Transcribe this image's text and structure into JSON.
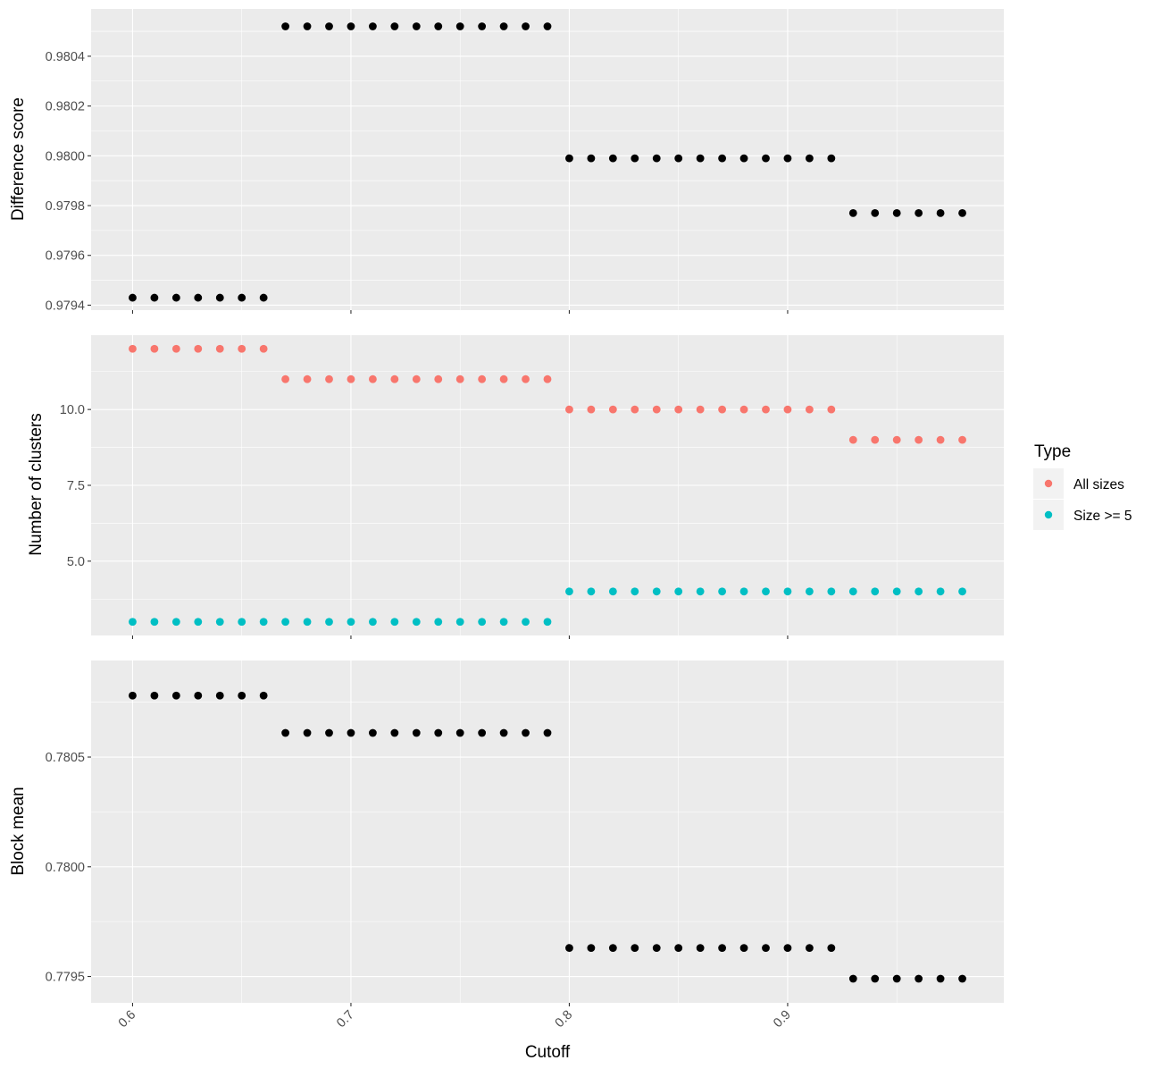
{
  "chart_data": [
    {
      "type": "scatter",
      "panel": "top",
      "ylabel": "Difference score",
      "xlim": [
        0.581,
        0.999
      ],
      "ylim": [
        0.97938,
        0.98059
      ],
      "yticks": [
        0.9794,
        0.9796,
        0.9798,
        0.98,
        0.9802,
        0.9804
      ],
      "ytick_labels": [
        "0.9794",
        "0.9796",
        "0.9798",
        "0.9800",
        "0.9802",
        "0.9804"
      ],
      "x_tick_marks": [
        0.6,
        0.7,
        0.8,
        0.9
      ],
      "series": [
        {
          "color": "#000000",
          "points": [
            [
              0.6,
              0.97943
            ],
            [
              0.61,
              0.97943
            ],
            [
              0.62,
              0.97943
            ],
            [
              0.63,
              0.97943
            ],
            [
              0.64,
              0.97943
            ],
            [
              0.65,
              0.97943
            ],
            [
              0.66,
              0.97943
            ],
            [
              0.67,
              0.98052
            ],
            [
              0.68,
              0.98052
            ],
            [
              0.69,
              0.98052
            ],
            [
              0.7,
              0.98052
            ],
            [
              0.71,
              0.98052
            ],
            [
              0.72,
              0.98052
            ],
            [
              0.73,
              0.98052
            ],
            [
              0.74,
              0.98052
            ],
            [
              0.75,
              0.98052
            ],
            [
              0.76,
              0.98052
            ],
            [
              0.77,
              0.98052
            ],
            [
              0.78,
              0.98052
            ],
            [
              0.79,
              0.98052
            ],
            [
              0.8,
              0.97999
            ],
            [
              0.81,
              0.97999
            ],
            [
              0.82,
              0.97999
            ],
            [
              0.83,
              0.97999
            ],
            [
              0.84,
              0.97999
            ],
            [
              0.85,
              0.97999
            ],
            [
              0.86,
              0.97999
            ],
            [
              0.87,
              0.97999
            ],
            [
              0.88,
              0.97999
            ],
            [
              0.89,
              0.97999
            ],
            [
              0.9,
              0.97999
            ],
            [
              0.91,
              0.97999
            ],
            [
              0.92,
              0.97999
            ],
            [
              0.93,
              0.97977
            ],
            [
              0.94,
              0.97977
            ],
            [
              0.95,
              0.97977
            ],
            [
              0.96,
              0.97977
            ],
            [
              0.97,
              0.97977
            ],
            [
              0.98,
              0.97977
            ]
          ]
        }
      ]
    },
    {
      "type": "scatter",
      "panel": "middle",
      "ylabel": "Number of clusters",
      "xlim": [
        0.581,
        0.999
      ],
      "ylim": [
        2.55,
        12.45
      ],
      "yticks": [
        5,
        7.5,
        10
      ],
      "ytick_labels": [
        "5.0",
        "7.5",
        "10.0"
      ],
      "x_tick_marks": [
        0.6,
        0.7,
        0.8,
        0.9
      ],
      "series": [
        {
          "name": "All sizes",
          "color": "#F8766D",
          "points": [
            [
              0.6,
              12
            ],
            [
              0.61,
              12
            ],
            [
              0.62,
              12
            ],
            [
              0.63,
              12
            ],
            [
              0.64,
              12
            ],
            [
              0.65,
              12
            ],
            [
              0.66,
              12
            ],
            [
              0.67,
              11
            ],
            [
              0.68,
              11
            ],
            [
              0.69,
              11
            ],
            [
              0.7,
              11
            ],
            [
              0.71,
              11
            ],
            [
              0.72,
              11
            ],
            [
              0.73,
              11
            ],
            [
              0.74,
              11
            ],
            [
              0.75,
              11
            ],
            [
              0.76,
              11
            ],
            [
              0.77,
              11
            ],
            [
              0.78,
              11
            ],
            [
              0.79,
              11
            ],
            [
              0.8,
              10
            ],
            [
              0.81,
              10
            ],
            [
              0.82,
              10
            ],
            [
              0.83,
              10
            ],
            [
              0.84,
              10
            ],
            [
              0.85,
              10
            ],
            [
              0.86,
              10
            ],
            [
              0.87,
              10
            ],
            [
              0.88,
              10
            ],
            [
              0.89,
              10
            ],
            [
              0.9,
              10
            ],
            [
              0.91,
              10
            ],
            [
              0.92,
              10
            ],
            [
              0.93,
              9
            ],
            [
              0.94,
              9
            ],
            [
              0.95,
              9
            ],
            [
              0.96,
              9
            ],
            [
              0.97,
              9
            ],
            [
              0.98,
              9
            ]
          ]
        },
        {
          "name": "Size >= 5",
          "color": "#00BFC4",
          "points": [
            [
              0.6,
              3
            ],
            [
              0.61,
              3
            ],
            [
              0.62,
              3
            ],
            [
              0.63,
              3
            ],
            [
              0.64,
              3
            ],
            [
              0.65,
              3
            ],
            [
              0.66,
              3
            ],
            [
              0.67,
              3
            ],
            [
              0.68,
              3
            ],
            [
              0.69,
              3
            ],
            [
              0.7,
              3
            ],
            [
              0.71,
              3
            ],
            [
              0.72,
              3
            ],
            [
              0.73,
              3
            ],
            [
              0.74,
              3
            ],
            [
              0.75,
              3
            ],
            [
              0.76,
              3
            ],
            [
              0.77,
              3
            ],
            [
              0.78,
              3
            ],
            [
              0.79,
              3
            ],
            [
              0.8,
              4
            ],
            [
              0.81,
              4
            ],
            [
              0.82,
              4
            ],
            [
              0.83,
              4
            ],
            [
              0.84,
              4
            ],
            [
              0.85,
              4
            ],
            [
              0.86,
              4
            ],
            [
              0.87,
              4
            ],
            [
              0.88,
              4
            ],
            [
              0.89,
              4
            ],
            [
              0.9,
              4
            ],
            [
              0.91,
              4
            ],
            [
              0.92,
              4
            ],
            [
              0.93,
              4
            ],
            [
              0.94,
              4
            ],
            [
              0.95,
              4
            ],
            [
              0.96,
              4
            ],
            [
              0.97,
              4
            ],
            [
              0.98,
              4
            ]
          ]
        }
      ],
      "legend": {
        "title": "Type",
        "position": "right",
        "items": [
          "All sizes",
          "Size >= 5"
        ]
      }
    },
    {
      "type": "scatter",
      "panel": "bottom",
      "ylabel": "Block mean",
      "xlabel": "Cutoff",
      "xlim": [
        0.581,
        0.999
      ],
      "ylim": [
        0.77938,
        0.78094
      ],
      "yticks": [
        0.7795,
        0.78,
        0.7805
      ],
      "ytick_labels": [
        "0.7795",
        "0.7800",
        "0.7805"
      ],
      "xticks": [
        0.6,
        0.7,
        0.8,
        0.9
      ],
      "xtick_labels": [
        "0.6",
        "0.7",
        "0.8",
        "0.9"
      ],
      "series": [
        {
          "color": "#000000",
          "points": [
            [
              0.6,
              0.78078
            ],
            [
              0.61,
              0.78078
            ],
            [
              0.62,
              0.78078
            ],
            [
              0.63,
              0.78078
            ],
            [
              0.64,
              0.78078
            ],
            [
              0.65,
              0.78078
            ],
            [
              0.66,
              0.78078
            ],
            [
              0.67,
              0.78061
            ],
            [
              0.68,
              0.78061
            ],
            [
              0.69,
              0.78061
            ],
            [
              0.7,
              0.78061
            ],
            [
              0.71,
              0.78061
            ],
            [
              0.72,
              0.78061
            ],
            [
              0.73,
              0.78061
            ],
            [
              0.74,
              0.78061
            ],
            [
              0.75,
              0.78061
            ],
            [
              0.76,
              0.78061
            ],
            [
              0.77,
              0.78061
            ],
            [
              0.78,
              0.78061
            ],
            [
              0.79,
              0.78061
            ],
            [
              0.8,
              0.77963
            ],
            [
              0.81,
              0.77963
            ],
            [
              0.82,
              0.77963
            ],
            [
              0.83,
              0.77963
            ],
            [
              0.84,
              0.77963
            ],
            [
              0.85,
              0.77963
            ],
            [
              0.86,
              0.77963
            ],
            [
              0.87,
              0.77963
            ],
            [
              0.88,
              0.77963
            ],
            [
              0.89,
              0.77963
            ],
            [
              0.9,
              0.77963
            ],
            [
              0.91,
              0.77963
            ],
            [
              0.92,
              0.77963
            ],
            [
              0.93,
              0.77949
            ],
            [
              0.94,
              0.77949
            ],
            [
              0.95,
              0.77949
            ],
            [
              0.96,
              0.77949
            ],
            [
              0.97,
              0.77949
            ],
            [
              0.98,
              0.77949
            ]
          ]
        }
      ]
    }
  ],
  "colors": {
    "panel_background": "#EBEBEB",
    "grid": "#FFFFFF",
    "tick_text": "#4D4D4D"
  }
}
